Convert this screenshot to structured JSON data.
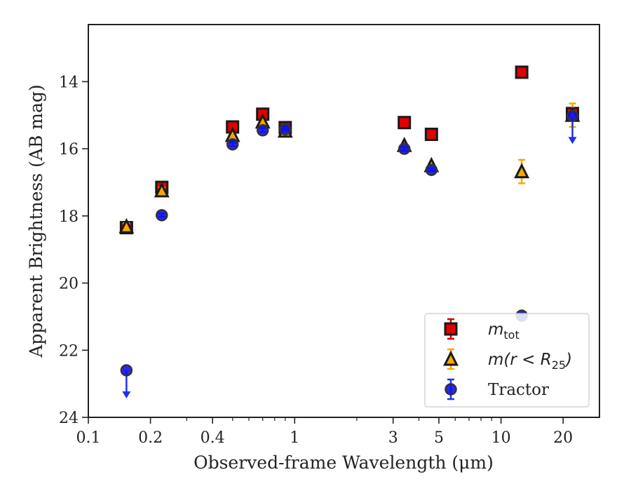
{
  "chart_data": {
    "type": "scatter",
    "title": "",
    "xlabel": "Observed-frame Wavelength (μm)",
    "ylabel": "Apparent Brightness (AB mag)",
    "xscale": "log",
    "xlim": [
      0.1,
      30
    ],
    "ylim": [
      24,
      12.3
    ],
    "y_inverted": true,
    "grid": false,
    "legend_position": "lower-right",
    "x_ticks": [
      0.1,
      0.2,
      0.4,
      1,
      3,
      5,
      10,
      20
    ],
    "x_tick_labels": [
      "0.1",
      "0.2",
      "0.4",
      "1",
      "3",
      "5",
      "10",
      "20"
    ],
    "y_ticks": [
      14,
      16,
      18,
      20,
      22,
      24
    ],
    "y_tick_labels": [
      "14",
      "16",
      "18",
      "20",
      "22",
      "24"
    ],
    "series": [
      {
        "name": "m_tot",
        "legend_main": "m",
        "legend_sub": "tot",
        "marker": "square",
        "color": "#e00000",
        "edge": "#1a1a1a",
        "err_color": "#d40000",
        "points": [
          {
            "x": 0.153,
            "y": 18.35,
            "err": 0.1
          },
          {
            "x": 0.227,
            "y": 17.15,
            "err": 0.1
          },
          {
            "x": 0.5,
            "y": 15.35,
            "err": 0.05
          },
          {
            "x": 0.7,
            "y": 14.97,
            "err": 0.05
          },
          {
            "x": 0.9,
            "y": 15.37,
            "err": 0.05
          },
          {
            "x": 3.4,
            "y": 15.22,
            "err": 0.05
          },
          {
            "x": 4.6,
            "y": 15.57,
            "err": 0.05
          },
          {
            "x": 12.6,
            "y": 13.72,
            "err": 0.05
          },
          {
            "x": 22.2,
            "y": 14.95,
            "err": 0.05
          }
        ]
      },
      {
        "name": "m(r < R_25)",
        "legend_main": "m(r < R",
        "legend_sub": "25",
        "legend_tail": ")",
        "marker": "triangle",
        "color": "#f5a800",
        "edge": "#1a1a1a",
        "err_color": "#f5a800",
        "points": [
          {
            "x": 0.153,
            "y": 18.32,
            "err": 0.1
          },
          {
            "x": 0.227,
            "y": 17.25,
            "err": 0.1
          },
          {
            "x": 0.5,
            "y": 15.6,
            "err": 0.05
          },
          {
            "x": 0.7,
            "y": 15.2,
            "err": 0.05
          },
          {
            "x": 0.9,
            "y": 15.47,
            "err": 0.05
          },
          {
            "x": 3.4,
            "y": 15.9,
            "err": 0.05
          },
          {
            "x": 4.6,
            "y": 16.5,
            "err": 0.05
          },
          {
            "x": 12.6,
            "y": 16.68,
            "err": 0.35
          },
          {
            "x": 22.2,
            "y": 15.0,
            "err": 0.35
          }
        ]
      },
      {
        "name": "Tractor",
        "marker": "circle",
        "color": "#1010ee",
        "edge": "#333333",
        "err_color": "#2030ee",
        "points": [
          {
            "x": 0.153,
            "y": 22.6,
            "err": 0,
            "upper_limit": true
          },
          {
            "x": 0.227,
            "y": 17.98,
            "err": 0.05
          },
          {
            "x": 0.5,
            "y": 15.87,
            "err": 0.05
          },
          {
            "x": 0.7,
            "y": 15.45,
            "err": 0.05
          },
          {
            "x": 0.9,
            "y": 15.42,
            "err": 0.05
          },
          {
            "x": 3.4,
            "y": 16.0,
            "err": 0.05
          },
          {
            "x": 4.6,
            "y": 16.63,
            "err": 0.05
          },
          {
            "x": 12.6,
            "y": 20.97,
            "err": 0
          },
          {
            "x": 22.2,
            "y": 15.02,
            "err": 0,
            "upper_limit": true
          }
        ]
      }
    ]
  }
}
